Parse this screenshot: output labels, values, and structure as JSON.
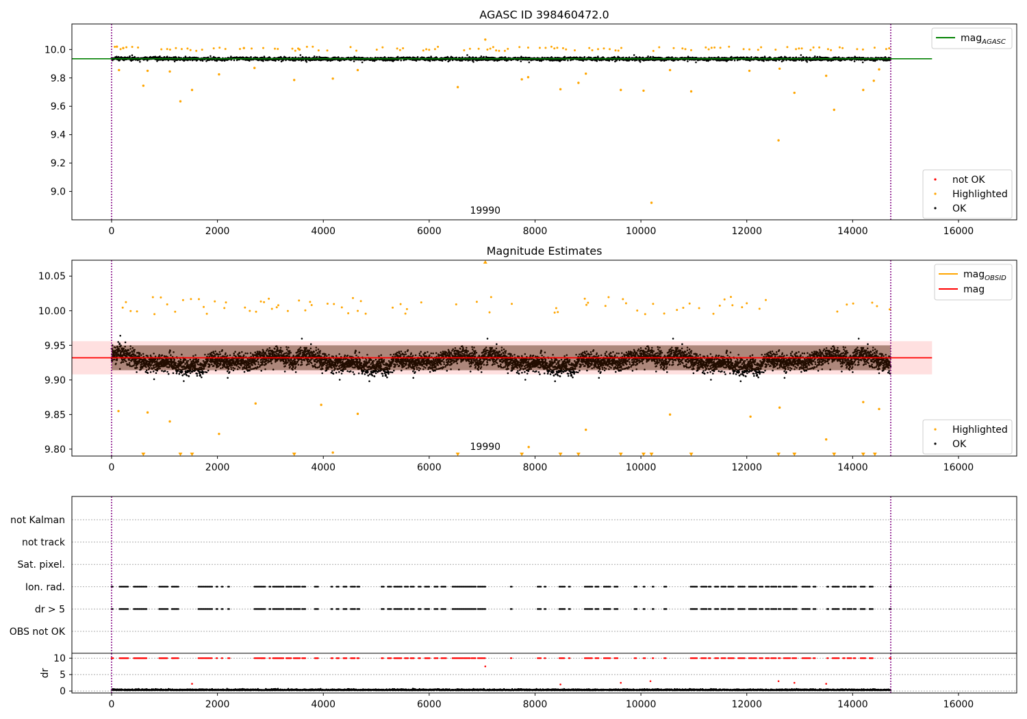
{
  "chart_data": [
    {
      "type": "scatter",
      "title": "AGASC ID 398460472.0",
      "xlim": [
        -750,
        17100
      ],
      "ylim": [
        8.8,
        10.18
      ],
      "xticks": [
        0,
        2000,
        4000,
        6000,
        8000,
        10000,
        12000,
        14000,
        16000
      ],
      "yticks": [
        9.0,
        9.2,
        9.4,
        9.6,
        9.8,
        10.0
      ],
      "ytick_labels": [
        "9.0",
        "9.2",
        "9.4",
        "9.6",
        "9.8",
        "10.0"
      ],
      "obsid_boundaries": [
        0,
        14720
      ],
      "obsid_label": "19990",
      "mag_agasc": 9.935,
      "line_span": [
        -750,
        15500
      ],
      "legend_lines": [
        {
          "label": "mag",
          "sub": "AGASC",
          "color": "#008000"
        }
      ],
      "legend_points": [
        {
          "label": "not OK",
          "color": "#ff0000"
        },
        {
          "label": "Highlighted",
          "color": "#ffa500"
        },
        {
          "label": "OK",
          "color": "#000000"
        }
      ],
      "ok_band": {
        "center": 9.935,
        "half_width": 0.035,
        "start": 0,
        "end": 14720
      },
      "highlighted_points": [
        [
          100,
          10.02
        ],
        [
          140,
          9.855
        ],
        [
          220,
          10.01
        ],
        [
          600,
          9.745
        ],
        [
          680,
          9.85
        ],
        [
          1100,
          9.845
        ],
        [
          1300,
          9.635
        ],
        [
          1520,
          9.715
        ],
        [
          2030,
          9.825
        ],
        [
          2500,
          10.01
        ],
        [
          2700,
          9.87
        ],
        [
          3450,
          9.785
        ],
        [
          3550,
          10.0
        ],
        [
          4180,
          9.795
        ],
        [
          4650,
          9.855
        ],
        [
          6540,
          9.735
        ],
        [
          7060,
          10.07
        ],
        [
          7750,
          9.79
        ],
        [
          7870,
          9.805
        ],
        [
          8480,
          9.72
        ],
        [
          8820,
          9.765
        ],
        [
          8960,
          9.83
        ],
        [
          9620,
          9.715
        ],
        [
          10050,
          9.71
        ],
        [
          10200,
          8.92
        ],
        [
          10550,
          9.855
        ],
        [
          10950,
          9.705
        ],
        [
          12050,
          9.85
        ],
        [
          12600,
          9.36
        ],
        [
          12620,
          9.865
        ],
        [
          12900,
          9.695
        ],
        [
          13500,
          9.815
        ],
        [
          13650,
          9.575
        ],
        [
          14200,
          9.715
        ],
        [
          14400,
          9.78
        ],
        [
          14500,
          9.86
        ]
      ]
    },
    {
      "type": "scatter",
      "title": "Magnitude Estimates",
      "xlim": [
        -750,
        17100
      ],
      "ylim": [
        9.79,
        10.073
      ],
      "xticks": [
        0,
        2000,
        4000,
        6000,
        8000,
        10000,
        12000,
        14000,
        16000
      ],
      "yticks": [
        9.8,
        9.85,
        9.9,
        9.95,
        10.0,
        10.05
      ],
      "ytick_labels": [
        "9.80",
        "9.85",
        "9.90",
        "9.95",
        "10.00",
        "10.05"
      ],
      "obsid_boundaries": [
        0,
        14720
      ],
      "obsid_label": "19990",
      "mag": 9.932,
      "mag_band": [
        9.908,
        9.956
      ],
      "line_span": [
        -750,
        15500
      ],
      "legend_lines": [
        {
          "label": "mag",
          "sub": "OBSID",
          "color": "#ffa500"
        },
        {
          "label": "mag",
          "sub": "",
          "color": "#ff0000"
        }
      ],
      "legend_points": [
        {
          "label": "Highlighted",
          "color": "#ffa500"
        },
        {
          "label": "OK",
          "color": "#000000"
        }
      ],
      "ok_core": {
        "center": 9.932,
        "half_width": 0.018,
        "start": 0,
        "end": 14720
      },
      "ok_spread": [
        9.87,
        10.0
      ],
      "highlighted_points": [
        [
          130,
          9.855
        ],
        [
          680,
          9.853
        ],
        [
          1100,
          9.84
        ],
        [
          2030,
          9.822
        ],
        [
          2720,
          9.866
        ],
        [
          3960,
          9.864
        ],
        [
          4650,
          9.851
        ],
        [
          8960,
          9.828
        ],
        [
          10550,
          9.85
        ],
        [
          12070,
          9.847
        ],
        [
          12620,
          9.86
        ],
        [
          13500,
          9.814
        ],
        [
          14200,
          9.868
        ],
        [
          14500,
          9.858
        ],
        [
          7880,
          9.803
        ],
        [
          4180,
          9.795
        ]
      ],
      "clipped_below_x": [
        600,
        1300,
        1520,
        3450,
        6540,
        7750,
        8480,
        8820,
        9620,
        10050,
        10200,
        10950,
        12600,
        12900,
        13650,
        14200,
        14420
      ],
      "clipped_above_x": [
        7060
      ]
    },
    {
      "type": "scatter",
      "title": "",
      "xlim": [
        -750,
        17100
      ],
      "xticks": [
        0,
        2000,
        4000,
        6000,
        8000,
        10000,
        12000,
        14000,
        16000
      ],
      "flag_rows": [
        "not Kalman",
        "not track",
        "Sat. pixel.",
        "Ion. rad.",
        "dr > 5",
        "OBS not OK"
      ],
      "flag_x_ranges": [
        [
          0,
          30
        ],
        [
          150,
          320
        ],
        [
          420,
          660
        ],
        [
          900,
          1060
        ],
        [
          1140,
          1260
        ],
        [
          1640,
          1900
        ],
        [
          1980,
          2000
        ],
        [
          2080,
          2100
        ],
        [
          2200,
          2230
        ],
        [
          2700,
          2900
        ],
        [
          2980,
          3000
        ],
        [
          3050,
          3250
        ],
        [
          3300,
          3400
        ],
        [
          3440,
          3560
        ],
        [
          3600,
          3660
        ],
        [
          3840,
          3900
        ],
        [
          4150,
          4180
        ],
        [
          4250,
          4300
        ],
        [
          4380,
          4440
        ],
        [
          4520,
          4600
        ],
        [
          4640,
          4680
        ],
        [
          5100,
          5140
        ],
        [
          5220,
          5290
        ],
        [
          5340,
          5480
        ],
        [
          5540,
          5600
        ],
        [
          5650,
          5720
        ],
        [
          5800,
          5840
        ],
        [
          5920,
          6010
        ],
        [
          6100,
          6160
        ],
        [
          6230,
          6320
        ],
        [
          6440,
          6780
        ],
        [
          6800,
          6880
        ],
        [
          6920,
          7060
        ],
        [
          7540,
          7560
        ],
        [
          8050,
          8110
        ],
        [
          8180,
          8200
        ],
        [
          8460,
          8560
        ],
        [
          8640,
          8660
        ],
        [
          8940,
          9080
        ],
        [
          9140,
          9200
        ],
        [
          9300,
          9420
        ],
        [
          9500,
          9560
        ],
        [
          9880,
          9920
        ],
        [
          10050,
          10080
        ],
        [
          10220,
          10240
        ],
        [
          10440,
          10480
        ],
        [
          10940,
          11060
        ],
        [
          11140,
          11240
        ],
        [
          11280,
          11320
        ],
        [
          11400,
          11460
        ],
        [
          11520,
          11600
        ],
        [
          11650,
          11760
        ],
        [
          11840,
          11960
        ],
        [
          12040,
          12100
        ],
        [
          12120,
          12180
        ],
        [
          12240,
          12300
        ],
        [
          12360,
          12420
        ],
        [
          12460,
          12560
        ],
        [
          12600,
          12640
        ],
        [
          12700,
          12820
        ],
        [
          12860,
          12940
        ],
        [
          13050,
          13200
        ],
        [
          13260,
          13300
        ],
        [
          13520,
          13540
        ],
        [
          13620,
          13740
        ],
        [
          13820,
          13860
        ],
        [
          13900,
          13980
        ],
        [
          14020,
          14060
        ],
        [
          14150,
          14240
        ],
        [
          14320,
          14380
        ],
        [
          14700,
          14720
        ]
      ],
      "flagged_rows": [
        "Ion. rad.",
        "dr > 5"
      ],
      "dr_ylabel": "dr",
      "dr_ylim": [
        -0.6,
        11.5
      ],
      "dr_yticks": [
        0,
        5,
        10
      ],
      "dr_ytick_labels": [
        "0",
        "5",
        "10"
      ],
      "dr_outliers": [
        [
          7060,
          7.5
        ],
        [
          10180,
          3.0
        ],
        [
          12600,
          3.0
        ],
        [
          12900,
          2.5
        ],
        [
          8480,
          2.0
        ],
        [
          9620,
          2.5
        ],
        [
          13500,
          2.2
        ],
        [
          1520,
          2.2
        ]
      ],
      "obsid_boundaries": [
        0,
        14720
      ]
    }
  ]
}
